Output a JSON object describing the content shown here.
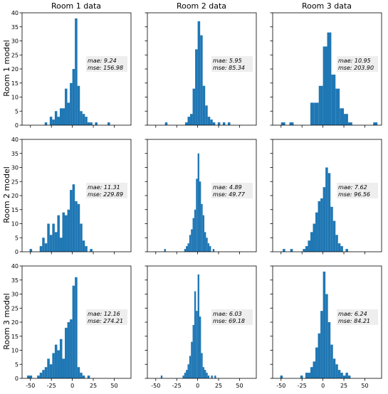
{
  "figure": {
    "column_titles": [
      "Room 1 data",
      "Room 2 data",
      "Room 3 data"
    ],
    "row_labels": [
      "Room 1 model",
      "Room 2 model",
      "Room 3 model"
    ],
    "bar_color": "#1f77b4",
    "annotation_bg": "#eeeeee"
  },
  "chart_data": [
    {
      "type": "bar",
      "row": 0,
      "col": 0,
      "xlim": [
        -60,
        70
      ],
      "ylim": [
        0,
        40
      ],
      "yticks": [
        0,
        5,
        10,
        15,
        20,
        25,
        30,
        35,
        40
      ],
      "xticks": [
        -50,
        -25,
        0,
        25,
        50
      ],
      "bin_width": 3,
      "bins": [
        [
          -33,
          1
        ],
        [
          -27,
          3
        ],
        [
          -24,
          2
        ],
        [
          -21,
          5
        ],
        [
          -18,
          3
        ],
        [
          -15,
          6
        ],
        [
          -12,
          6
        ],
        [
          -9,
          13
        ],
        [
          -6,
          8
        ],
        [
          -3,
          15
        ],
        [
          0,
          20
        ],
        [
          3,
          38
        ],
        [
          6,
          14
        ],
        [
          9,
          5
        ],
        [
          12,
          4
        ],
        [
          15,
          3
        ],
        [
          18,
          1
        ],
        [
          21,
          1
        ],
        [
          27,
          1
        ],
        [
          42,
          1
        ]
      ],
      "mae": "mae:  9.24",
      "mse": "mse: 156.98"
    },
    {
      "type": "bar",
      "row": 0,
      "col": 1,
      "xlim": [
        -60,
        70
      ],
      "ylim": [
        0,
        40
      ],
      "yticks": [
        0,
        5,
        10,
        15,
        20,
        25,
        30,
        35,
        40
      ],
      "xticks": [
        -50,
        -25,
        0,
        25,
        50
      ],
      "bin_width": 3,
      "bins": [
        [
          -39,
          1
        ],
        [
          -15,
          1
        ],
        [
          -12,
          3
        ],
        [
          -9,
          4
        ],
        [
          -6,
          13
        ],
        [
          -3,
          27
        ],
        [
          0,
          37
        ],
        [
          3,
          32
        ],
        [
          6,
          14
        ],
        [
          9,
          7
        ],
        [
          12,
          3
        ],
        [
          15,
          2
        ],
        [
          18,
          1
        ],
        [
          24,
          1
        ],
        [
          30,
          1
        ],
        [
          36,
          1
        ]
      ],
      "mae": "mae:  5.95",
      "mse": "mse: 85.34"
    },
    {
      "type": "bar",
      "row": 0,
      "col": 2,
      "xlim": [
        -60,
        70
      ],
      "ylim": [
        0,
        40
      ],
      "yticks": [
        0,
        5,
        10,
        15,
        20,
        25,
        30,
        35,
        40
      ],
      "xticks": [
        -50,
        -25,
        0,
        25,
        50
      ],
      "bin_width": 5,
      "bins": [
        [
          -50,
          1
        ],
        [
          -40,
          1
        ],
        [
          -15,
          8
        ],
        [
          -10,
          8
        ],
        [
          -5,
          14
        ],
        [
          0,
          28
        ],
        [
          5,
          33
        ],
        [
          10,
          18
        ],
        [
          15,
          13
        ],
        [
          20,
          6
        ],
        [
          25,
          4
        ],
        [
          30,
          1
        ],
        [
          60,
          1
        ]
      ],
      "mae": "mae: 10.95",
      "mse": "mse: 203.90"
    },
    {
      "type": "bar",
      "row": 1,
      "col": 0,
      "xlim": [
        -60,
        70
      ],
      "ylim": [
        0,
        40
      ],
      "yticks": [
        0,
        5,
        10,
        15,
        20,
        25,
        30,
        35,
        40
      ],
      "xticks": [
        -50,
        -25,
        0,
        25,
        50
      ],
      "bin_width": 3,
      "bins": [
        [
          -51,
          1
        ],
        [
          -39,
          2
        ],
        [
          -36,
          5
        ],
        [
          -33,
          3
        ],
        [
          -30,
          10
        ],
        [
          -27,
          6
        ],
        [
          -24,
          10
        ],
        [
          -21,
          7
        ],
        [
          -18,
          13
        ],
        [
          -15,
          5
        ],
        [
          -12,
          14
        ],
        [
          -9,
          13
        ],
        [
          -6,
          15
        ],
        [
          -3,
          22
        ],
        [
          0,
          24
        ],
        [
          3,
          18
        ],
        [
          6,
          17
        ],
        [
          9,
          10
        ],
        [
          12,
          4
        ],
        [
          15,
          2
        ],
        [
          21,
          1
        ]
      ],
      "mae": "mae: 11.31",
      "mse": "mse: 229.89"
    },
    {
      "type": "bar",
      "row": 1,
      "col": 1,
      "xlim": [
        -60,
        70
      ],
      "ylim": [
        0,
        40
      ],
      "yticks": [
        0,
        5,
        10,
        15,
        20,
        25,
        30,
        35,
        40
      ],
      "xticks": [
        -50,
        -25,
        0,
        25,
        50
      ],
      "bin_width": 2,
      "bins": [
        [
          -40,
          1
        ],
        [
          -16,
          1
        ],
        [
          -14,
          2
        ],
        [
          -12,
          3
        ],
        [
          -10,
          6
        ],
        [
          -8,
          8
        ],
        [
          -6,
          12
        ],
        [
          -4,
          15
        ],
        [
          -2,
          26
        ],
        [
          0,
          35
        ],
        [
          2,
          25
        ],
        [
          4,
          17
        ],
        [
          6,
          13
        ],
        [
          8,
          7
        ],
        [
          10,
          5
        ],
        [
          12,
          3
        ],
        [
          14,
          2
        ],
        [
          18,
          1
        ]
      ],
      "mae": "mae:  4.89",
      "mse": "mse: 49.77"
    },
    {
      "type": "bar",
      "row": 1,
      "col": 2,
      "xlim": [
        -60,
        70
      ],
      "ylim": [
        0,
        40
      ],
      "yticks": [
        0,
        5,
        10,
        15,
        20,
        25,
        30,
        35,
        40
      ],
      "xticks": [
        -50,
        -25,
        0,
        25,
        50
      ],
      "bin_width": 3,
      "bins": [
        [
          -48,
          1
        ],
        [
          -39,
          1
        ],
        [
          -24,
          1
        ],
        [
          -21,
          2
        ],
        [
          -18,
          4
        ],
        [
          -15,
          7
        ],
        [
          -12,
          10
        ],
        [
          -9,
          14
        ],
        [
          -6,
          18
        ],
        [
          -3,
          19
        ],
        [
          0,
          23
        ],
        [
          3,
          30
        ],
        [
          6,
          28
        ],
        [
          9,
          16
        ],
        [
          12,
          11
        ],
        [
          15,
          6
        ],
        [
          18,
          3
        ],
        [
          21,
          2
        ],
        [
          27,
          1
        ]
      ],
      "mae": "mae:  7.62",
      "mse": "mse: 96.56"
    },
    {
      "type": "bar",
      "row": 2,
      "col": 0,
      "xlim": [
        -60,
        70
      ],
      "ylim": [
        0,
        40
      ],
      "yticks": [
        0,
        5,
        10,
        15,
        20,
        25,
        30,
        35,
        40
      ],
      "xticks": [
        -50,
        -25,
        0,
        25,
        50
      ],
      "bin_width": 3,
      "bins": [
        [
          -54,
          1
        ],
        [
          -51,
          1
        ],
        [
          -42,
          1
        ],
        [
          -39,
          2
        ],
        [
          -36,
          3
        ],
        [
          -33,
          4
        ],
        [
          -30,
          7
        ],
        [
          -27,
          5
        ],
        [
          -24,
          9
        ],
        [
          -21,
          12
        ],
        [
          -18,
          10
        ],
        [
          -15,
          14
        ],
        [
          -12,
          7
        ],
        [
          -9,
          18
        ],
        [
          -6,
          20
        ],
        [
          -3,
          21
        ],
        [
          0,
          33
        ],
        [
          3,
          36
        ],
        [
          6,
          4
        ],
        [
          9,
          2
        ],
        [
          12,
          1
        ],
        [
          18,
          1
        ]
      ],
      "mae": "mae: 12.16",
      "mse": "mse: 274.21"
    },
    {
      "type": "bar",
      "row": 2,
      "col": 1,
      "xlim": [
        -60,
        70
      ],
      "ylim": [
        0,
        40
      ],
      "yticks": [
        0,
        5,
        10,
        15,
        20,
        25,
        30,
        35,
        40
      ],
      "xticks": [
        -50,
        -25,
        0,
        25,
        50
      ],
      "bin_width": 2,
      "bins": [
        [
          -44,
          1
        ],
        [
          -18,
          1
        ],
        [
          -16,
          2
        ],
        [
          -14,
          3
        ],
        [
          -12,
          5
        ],
        [
          -10,
          8
        ],
        [
          -8,
          13
        ],
        [
          -6,
          19
        ],
        [
          -4,
          31
        ],
        [
          -2,
          24
        ],
        [
          0,
          37
        ],
        [
          2,
          22
        ],
        [
          4,
          9
        ],
        [
          6,
          4
        ],
        [
          8,
          3
        ],
        [
          10,
          2
        ],
        [
          12,
          1
        ],
        [
          16,
          1
        ],
        [
          20,
          1
        ]
      ],
      "mae": "mae:  6.03",
      "mse": "mse: 69.18"
    },
    {
      "type": "bar",
      "row": 2,
      "col": 2,
      "xlim": [
        -60,
        70
      ],
      "ylim": [
        0,
        40
      ],
      "yticks": [
        0,
        5,
        10,
        15,
        20,
        25,
        30,
        35,
        40
      ],
      "xticks": [
        -50,
        -25,
        0,
        25,
        50
      ],
      "bin_width": 3,
      "bins": [
        [
          -51,
          1
        ],
        [
          -27,
          1
        ],
        [
          -21,
          2
        ],
        [
          -18,
          2
        ],
        [
          -15,
          4
        ],
        [
          -12,
          6
        ],
        [
          -9,
          11
        ],
        [
          -6,
          16
        ],
        [
          -3,
          24
        ],
        [
          0,
          38
        ],
        [
          3,
          30
        ],
        [
          6,
          20
        ],
        [
          9,
          12
        ],
        [
          12,
          7
        ],
        [
          15,
          5
        ],
        [
          18,
          3
        ],
        [
          21,
          2
        ],
        [
          24,
          1
        ],
        [
          27,
          2
        ],
        [
          30,
          1
        ]
      ],
      "mae": "mae:  6.24",
      "mse": "mse: 84.21"
    }
  ]
}
